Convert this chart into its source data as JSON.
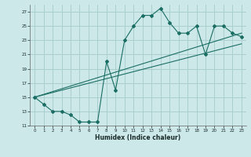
{
  "xlabel": "Humidex (Indice chaleur)",
  "ylabel": "",
  "xlim": [
    -0.5,
    23.5
  ],
  "ylim": [
    11,
    28
  ],
  "yticks": [
    11,
    13,
    15,
    17,
    19,
    21,
    23,
    25,
    27
  ],
  "xticks": [
    0,
    1,
    2,
    3,
    4,
    5,
    6,
    7,
    8,
    9,
    10,
    11,
    12,
    13,
    14,
    15,
    16,
    17,
    18,
    19,
    20,
    21,
    22,
    23
  ],
  "bg_color": "#cce8e8",
  "grid_color": "#aacfcf",
  "line_color": "#1a6e64",
  "curve1_x": [
    0,
    1,
    2,
    3,
    4,
    5,
    6,
    7,
    8,
    9,
    10,
    11,
    12,
    13,
    14,
    15,
    16,
    17,
    18,
    19,
    20,
    21,
    22,
    23
  ],
  "curve1_y": [
    15,
    14,
    13,
    13,
    12.5,
    11.5,
    11.5,
    11.5,
    20,
    16,
    23,
    25,
    26.5,
    26.5,
    27.5,
    25.5,
    24,
    24,
    25,
    21,
    25,
    25,
    24,
    23.5
  ],
  "line2_x": [
    0,
    23
  ],
  "line2_y": [
    15,
    24
  ],
  "line3_x": [
    0,
    23
  ],
  "line3_y": [
    15,
    22.5
  ]
}
